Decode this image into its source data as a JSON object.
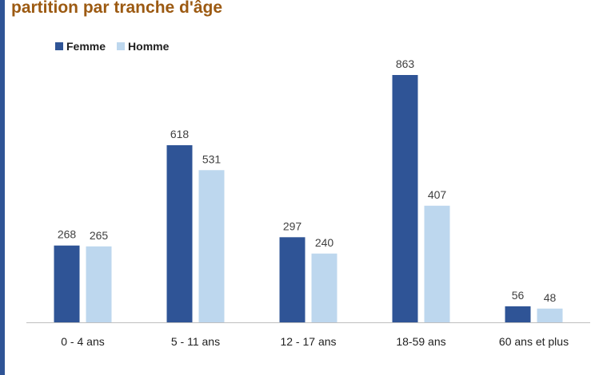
{
  "page_title": "partition par tranche d'âge",
  "colors": {
    "femme": "#2f5496",
    "homme": "#bdd7ee",
    "axis": "#bfbfbf",
    "accent_bar": "#2f5496",
    "title": "#9c5a12"
  },
  "legend": {
    "position": "top-left",
    "items": [
      "Femme",
      "Homme"
    ]
  },
  "chart_data": {
    "type": "bar",
    "categories": [
      "0 - 4 ans",
      "5 - 11 ans",
      "12 - 17 ans",
      "18-59 ans",
      "60 ans et plus"
    ],
    "series": [
      {
        "name": "Femme",
        "values": [
          268,
          618,
          297,
          863,
          56
        ]
      },
      {
        "name": "Homme",
        "values": [
          265,
          531,
          240,
          407,
          48
        ]
      }
    ],
    "ylim": [
      0,
      863
    ],
    "grid": false,
    "data_labels": true
  }
}
